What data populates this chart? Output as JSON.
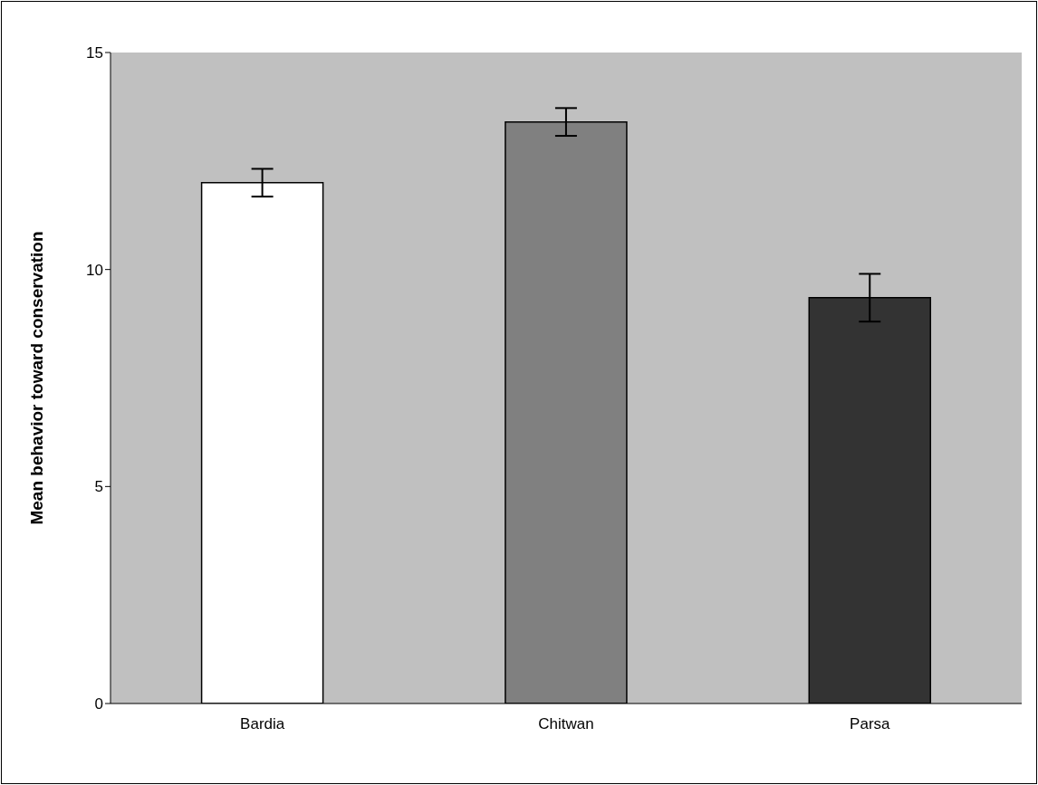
{
  "chart_data": {
    "type": "bar",
    "ylabel": "Mean behavior toward conservation",
    "categories": [
      "Bardia",
      "Chitwan",
      "Parsa"
    ],
    "values": [
      12.0,
      13.4,
      9.35
    ],
    "colors": [
      "#ffffff",
      "#808080",
      "#333333"
    ],
    "errors": [
      0.32,
      0.32,
      0.55
    ],
    "ylim": [
      0,
      15
    ],
    "yticks": [
      0,
      5,
      10,
      15
    ]
  }
}
